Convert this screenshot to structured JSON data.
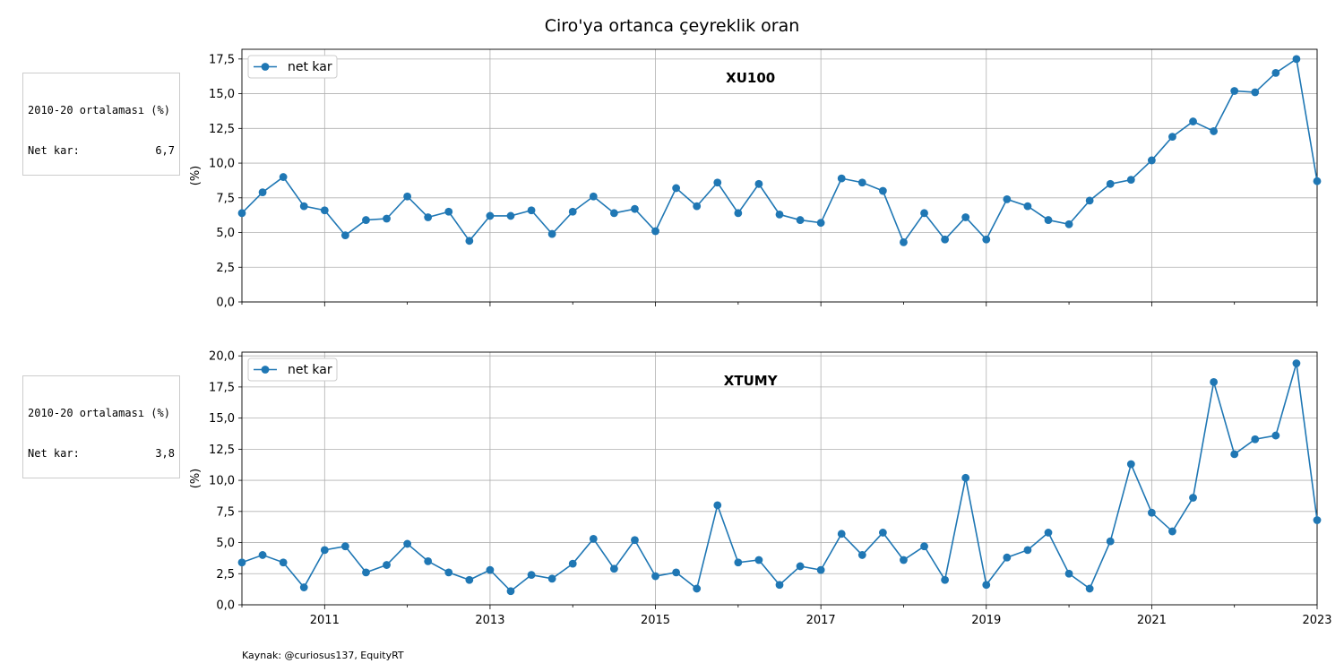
{
  "figure": {
    "title": "Ciro'ya ortanca çeyreklik oran",
    "source": "Kaynak: @curiosus137, EquityRT",
    "ylabel": "(%)",
    "legend_label": "net kar",
    "line_color": "#1f77b4",
    "x_ticks": [
      "2011",
      "2013",
      "2015",
      "2017",
      "2019",
      "2021",
      "2023"
    ]
  },
  "chart_data": [
    {
      "type": "line",
      "panel_title": "XU100",
      "ylabel": "(%)",
      "ylim": [
        0,
        18.2
      ],
      "y_ticks": [
        "0,0",
        "2,5",
        "5,0",
        "7,5",
        "10,0",
        "12,5",
        "15,0",
        "17,5"
      ],
      "xlim": [
        2010.0,
        2023.0
      ],
      "grid": true,
      "legend_position": "upper left",
      "average_box": {
        "heading": "2010-20 ortalaması (%)",
        "label": "Net kar:",
        "value": "6,7"
      },
      "series": [
        {
          "name": "net kar",
          "x": [
            2010.0,
            2010.25,
            2010.5,
            2010.75,
            2011.0,
            2011.25,
            2011.5,
            2011.75,
            2012.0,
            2012.25,
            2012.5,
            2012.75,
            2013.0,
            2013.25,
            2013.5,
            2013.75,
            2014.0,
            2014.25,
            2014.5,
            2014.75,
            2015.0,
            2015.25,
            2015.5,
            2015.75,
            2016.0,
            2016.25,
            2016.5,
            2016.75,
            2017.0,
            2017.25,
            2017.5,
            2017.75,
            2018.0,
            2018.25,
            2018.5,
            2018.75,
            2019.0,
            2019.25,
            2019.5,
            2019.75,
            2020.0,
            2020.25,
            2020.5,
            2020.75,
            2021.0,
            2021.25,
            2021.5,
            2021.75,
            2022.0,
            2022.25,
            2022.5,
            2022.75,
            2023.0
          ],
          "y": [
            6.4,
            7.9,
            9.0,
            6.9,
            6.6,
            4.8,
            5.9,
            6.0,
            7.6,
            6.1,
            6.5,
            4.4,
            6.2,
            6.2,
            6.6,
            4.9,
            6.5,
            7.6,
            6.4,
            6.7,
            5.1,
            8.2,
            6.9,
            8.6,
            6.4,
            8.5,
            6.3,
            5.9,
            5.7,
            8.9,
            8.6,
            8.0,
            4.3,
            6.4,
            4.5,
            6.1,
            4.5,
            7.4,
            6.9,
            5.9,
            5.6,
            7.3,
            8.5,
            8.8,
            10.2,
            11.9,
            13.0,
            12.3,
            15.2,
            15.1,
            16.5,
            17.5,
            8.7
          ]
        }
      ]
    },
    {
      "type": "line",
      "panel_title": "XTUMY",
      "ylabel": "(%)",
      "ylim": [
        0,
        20.3
      ],
      "y_ticks": [
        "0,0",
        "2,5",
        "5,0",
        "7,5",
        "10,0",
        "12,5",
        "15,0",
        "17,5",
        "20,0"
      ],
      "xlim": [
        2010.0,
        2023.0
      ],
      "grid": true,
      "legend_position": "upper left",
      "average_box": {
        "heading": "2010-20 ortalaması (%)",
        "label": "Net kar:",
        "value": "3,8"
      },
      "series": [
        {
          "name": "net kar",
          "x": [
            2010.0,
            2010.25,
            2010.5,
            2010.75,
            2011.0,
            2011.25,
            2011.5,
            2011.75,
            2012.0,
            2012.25,
            2012.5,
            2012.75,
            2013.0,
            2013.25,
            2013.5,
            2013.75,
            2014.0,
            2014.25,
            2014.5,
            2014.75,
            2015.0,
            2015.25,
            2015.5,
            2015.75,
            2016.0,
            2016.25,
            2016.5,
            2016.75,
            2017.0,
            2017.25,
            2017.5,
            2017.75,
            2018.0,
            2018.25,
            2018.5,
            2018.75,
            2019.0,
            2019.25,
            2019.5,
            2019.75,
            2020.0,
            2020.25,
            2020.5,
            2020.75,
            2021.0,
            2021.25,
            2021.5,
            2021.75,
            2022.0,
            2022.25,
            2022.5,
            2022.75,
            2023.0
          ],
          "y": [
            3.4,
            4.0,
            3.4,
            1.4,
            4.4,
            4.7,
            2.6,
            3.2,
            4.9,
            3.5,
            2.6,
            2.0,
            2.8,
            1.1,
            2.4,
            2.1,
            3.3,
            5.3,
            2.9,
            5.2,
            2.3,
            2.6,
            1.3,
            8.0,
            3.4,
            3.6,
            1.6,
            3.1,
            2.8,
            5.7,
            4.0,
            5.8,
            3.6,
            4.7,
            2.0,
            10.2,
            1.6,
            3.8,
            4.4,
            5.8,
            2.5,
            1.3,
            5.1,
            11.3,
            7.4,
            5.9,
            8.6,
            17.9,
            12.1,
            13.3,
            13.6,
            19.4,
            6.8
          ]
        }
      ]
    }
  ]
}
